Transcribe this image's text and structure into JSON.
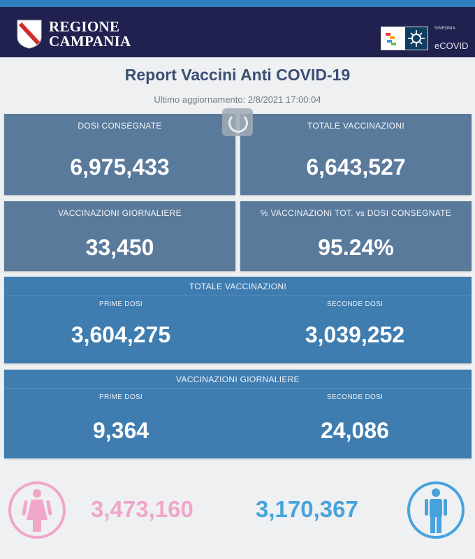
{
  "header": {
    "region_line1": "REGIONE",
    "region_line2": "CAMPANIA",
    "partner_small": "SINFONIA",
    "partner_name": "eCOVID"
  },
  "report": {
    "title": "Report Vaccini Anti COVID-19",
    "updated": "Ultimo aggiornamento: 2/8/2021  17:00:04"
  },
  "cards": {
    "dosi_consegnate": {
      "label": "DOSI  CONSEGNATE",
      "value": "6,975,433"
    },
    "totale_vaccinazioni": {
      "label": "TOTALE VACCINAZIONI",
      "value": "6,643,527"
    },
    "vaccinazioni_giornaliere": {
      "label": "VACCINAZIONI GIORNALIERE",
      "value": "33,450"
    },
    "percentuale": {
      "label": "% VACCINAZIONI TOT. vs DOSI CONSEGNATE",
      "value": "95.24%"
    }
  },
  "totale_band": {
    "title": "TOTALE VACCINAZIONI",
    "prime_label": "PRIME DOSI",
    "prime_value": "3,604,275",
    "seconde_label": "SECONDE DOSI",
    "seconde_value": "3,039,252"
  },
  "giornaliere_band": {
    "title": "VACCINAZIONI GIORNALIERE",
    "prime_label": "PRIME DOSI",
    "prime_value": "9,364",
    "seconde_label": "SECONDE DOSI",
    "seconde_value": "24,086"
  },
  "gender": {
    "female_value": "3,473,160",
    "male_value": "3,170,367",
    "female_color": "#f0a6cb",
    "male_color": "#47a3dd",
    "female_icon": "female-person-icon",
    "male_icon": "male-person-icon"
  },
  "colors": {
    "header_bg": "#21214f",
    "card_bg": "#5a7a9c",
    "band_bg": "#3f7db1"
  }
}
